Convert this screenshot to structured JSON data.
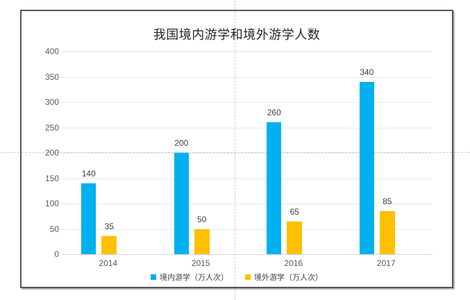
{
  "title": "我国境内游学和境外游学人数",
  "chart_data": {
    "type": "bar",
    "title": "我国境内游学和境外游学人数",
    "categories": [
      "2014",
      "2015",
      "2016",
      "2017"
    ],
    "series": [
      {
        "name": "境内游学（万人次）",
        "color": "#00B0F0",
        "values": [
          140,
          200,
          260,
          340
        ]
      },
      {
        "name": "境外游学（万人次）",
        "color": "#FFC000",
        "values": [
          35,
          50,
          65,
          85
        ]
      }
    ],
    "ylim": [
      0,
      400
    ],
    "ytick_step": 50,
    "yticks": [
      0,
      50,
      100,
      150,
      200,
      250,
      300,
      350,
      400
    ],
    "grid": true,
    "data_labels": true,
    "legend_position": "bottom",
    "xlabel": "",
    "ylabel": ""
  },
  "colors": {
    "series_domestic": "#00B0F0",
    "series_overseas": "#FFC000",
    "gridline": "#e9e9e9",
    "axis_text": "#595959",
    "data_label_text": "#404040",
    "chart_border": "#555555",
    "guide_line": "#cccccc"
  }
}
